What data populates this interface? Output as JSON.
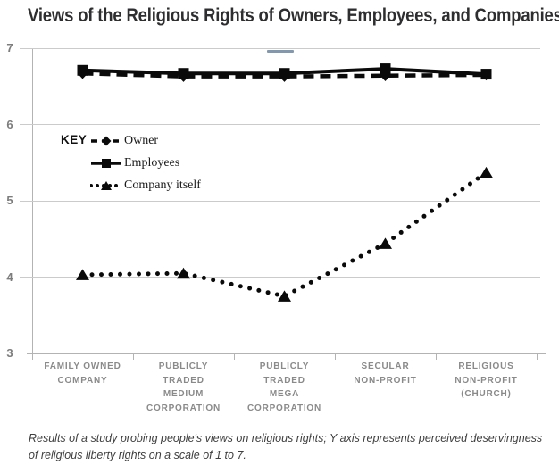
{
  "title": "Views of the Religious Rights of Owners, Employees, and Companies",
  "caption": "Results of a study probing people's views on religious rights; Y axis represents perceived deservingness of religious liberty rights on a scale of 1 to 7.",
  "legend": {
    "key_label": "KEY",
    "position": "upper-left-inside",
    "entries": [
      "Owner",
      "Employees",
      "Company itself"
    ]
  },
  "colors": {
    "series": "#0a0a0a",
    "grid": "#cbcbcb",
    "axis": "#b3b3b3",
    "y_tick_label": "#7d7d7d",
    "category_label": "#8a8a8a",
    "title": "#2e2e30",
    "caption": "#3e3e3e",
    "artifact_dash": "#6b86a0"
  },
  "chart_data": {
    "type": "line",
    "title": "Views of the Religious Rights of Owners, Employees, and Companies",
    "categories": [
      "Family Owned Company",
      "Publicly Traded Medium Corporation",
      "Publicly Traded Mega Corporation",
      "Secular Non-Profit",
      "Religious Non-Profit (Church)"
    ],
    "category_labels": [
      [
        "FAMILY OWNED",
        "COMPANY"
      ],
      [
        "PUBLICLY",
        "TRADED",
        "MEDIUM",
        "CORPORATION"
      ],
      [
        "PUBLICLY",
        "TRADED",
        "MEGA",
        "CORPORATION"
      ],
      [
        "SECULAR",
        "NON-PROFIT"
      ],
      [
        "RELIGIOUS",
        "NON-PROFIT",
        "(CHURCH)"
      ]
    ],
    "series": [
      {
        "name": "Owner",
        "line_style": "dashed",
        "marker": "diamond",
        "values": [
          6.67,
          6.63,
          6.63,
          6.64,
          6.65
        ]
      },
      {
        "name": "Employees",
        "line_style": "solid",
        "marker": "square",
        "values": [
          6.71,
          6.67,
          6.67,
          6.73,
          6.66
        ]
      },
      {
        "name": "Company itself",
        "line_style": "dotted",
        "marker": "triangle",
        "values": [
          4.03,
          4.05,
          3.75,
          4.44,
          5.37
        ]
      }
    ],
    "xlabel": "",
    "ylabel": "",
    "ylim": [
      3,
      7
    ],
    "yticks": [
      3,
      4,
      5,
      6,
      7
    ],
    "grid": "horizontal"
  }
}
